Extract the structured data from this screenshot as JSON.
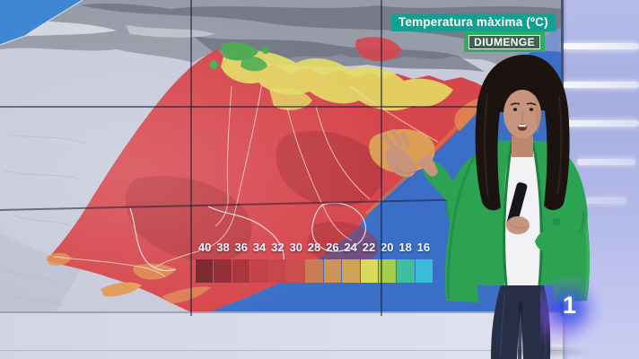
{
  "broadcast": {
    "channel_logo": "1"
  },
  "screen": {
    "title": "Temperatura màxima (ºC)",
    "day_badge": "DIUMENGE"
  },
  "legend": {
    "values": [
      "40",
      "38",
      "36",
      "34",
      "32",
      "30",
      "28",
      "26",
      "24",
      "22",
      "20",
      "18",
      "16"
    ],
    "colors": [
      "#7D2B33",
      "#93303A",
      "#A83740",
      "#C2424A",
      "#C8474D",
      "#CD4E50",
      "#C97E52",
      "#CE9456",
      "#D0A355",
      "#DAD95F",
      "#A6CE4D",
      "#3FBFA0",
      "#38BCD8"
    ]
  },
  "theme": {
    "title-bg": "#12A091",
    "badge-bg": "#2FAC5C",
    "sea-blue": "#3B6FC7",
    "hot-red": "#D6464C",
    "studio-wall": "#ABB3E6",
    "floor": "#D9DBEA"
  }
}
